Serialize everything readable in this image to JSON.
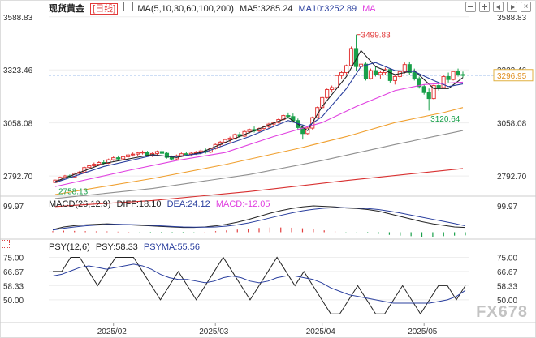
{
  "header": {
    "symbol": "现货黄金",
    "period": "日线",
    "ma_label": "MA(5,10,30,60,100,200)",
    "ma5": "MA5:3285.24",
    "ma10": "MA10:3252.89",
    "ma": "MA"
  },
  "macd_header": {
    "label": "MACD(26,12,9)",
    "diff": "DIFF:18.10",
    "dea": "DEA:24.12",
    "macd": "MACD:-12.05"
  },
  "psy_header": {
    "label": "PSY(12,6)",
    "psy": "PSY:58.33",
    "psyma": "PSYMA:55.56"
  },
  "watermark": "FX678",
  "colors": {
    "up": "#e23b3b",
    "down": "#19a04a",
    "ma5": "#222222",
    "ma10": "#2a3f9e",
    "ma30": "#e040e0",
    "ma60": "#f0a030",
    "ma100": "#909090",
    "ma200": "#d83030",
    "psy": "#222222",
    "psyma": "#2a3f9e"
  },
  "chart_data": [
    {
      "type": "candlestick",
      "title": "现货黄金",
      "price_ticks": [
        "3588.83",
        "3323.46",
        "3058.08",
        "2792.70"
      ],
      "price_tick_values": [
        3588.83,
        3323.46,
        3058.08,
        2792.7
      ],
      "ylim": [
        2700,
        3600
      ],
      "x_labels": [
        "2025/02",
        "2025/03",
        "2025/04",
        "2025/05"
      ],
      "current_price": "3296.95",
      "current_price_value": 3296.95,
      "annotations": {
        "high": "3499.83",
        "low_recent": "3120.64",
        "low_start": "2758.13"
      },
      "candles": [
        [
          2760,
          2775,
          2758,
          2772
        ],
        [
          2772,
          2790,
          2768,
          2786
        ],
        [
          2786,
          2798,
          2780,
          2793
        ],
        [
          2793,
          2800,
          2785,
          2788
        ],
        [
          2788,
          2810,
          2786,
          2806
        ],
        [
          2806,
          2818,
          2800,
          2812
        ],
        [
          2812,
          2840,
          2808,
          2835
        ],
        [
          2835,
          2850,
          2828,
          2844
        ],
        [
          2844,
          2860,
          2838,
          2852
        ],
        [
          2852,
          2866,
          2845,
          2860
        ],
        [
          2860,
          2872,
          2850,
          2856
        ],
        [
          2856,
          2880,
          2852,
          2874
        ],
        [
          2874,
          2890,
          2868,
          2884
        ],
        [
          2884,
          2895,
          2870,
          2878
        ],
        [
          2878,
          2892,
          2874,
          2889
        ],
        [
          2889,
          2905,
          2880,
          2898
        ],
        [
          2898,
          2910,
          2890,
          2902
        ],
        [
          2902,
          2915,
          2894,
          2908
        ],
        [
          2908,
          2920,
          2900,
          2912
        ],
        [
          2912,
          2918,
          2890,
          2896
        ],
        [
          2896,
          2910,
          2888,
          2905
        ],
        [
          2905,
          2920,
          2898,
          2915
        ],
        [
          2915,
          2925,
          2900,
          2906
        ],
        [
          2906,
          2912,
          2880,
          2886
        ],
        [
          2886,
          2895,
          2870,
          2878
        ],
        [
          2878,
          2900,
          2872,
          2894
        ],
        [
          2894,
          2910,
          2888,
          2904
        ],
        [
          2904,
          2915,
          2895,
          2900
        ],
        [
          2900,
          2912,
          2890,
          2906
        ],
        [
          2906,
          2918,
          2898,
          2910
        ],
        [
          2910,
          2925,
          2900,
          2918
        ],
        [
          2918,
          2930,
          2905,
          2912
        ],
        [
          2912,
          2935,
          2908,
          2930
        ],
        [
          2930,
          2955,
          2925,
          2950
        ],
        [
          2950,
          2968,
          2940,
          2962
        ],
        [
          2962,
          2980,
          2955,
          2975
        ],
        [
          2975,
          2990,
          2960,
          2982
        ],
        [
          2982,
          3005,
          2975,
          3000
        ],
        [
          3000,
          3012,
          2985,
          2992
        ],
        [
          2992,
          3020,
          2988,
          3015
        ],
        [
          3015,
          3030,
          3005,
          3025
        ],
        [
          3025,
          3040,
          3010,
          3018
        ],
        [
          3018,
          3035,
          3012,
          3030
        ],
        [
          3030,
          3045,
          3020,
          3040
        ],
        [
          3040,
          3058,
          3030,
          3052
        ],
        [
          3052,
          3065,
          3040,
          3060
        ],
        [
          3060,
          3080,
          3055,
          3075
        ],
        [
          3075,
          3100,
          3070,
          3095
        ],
        [
          3095,
          3110,
          3080,
          3090
        ],
        [
          3090,
          3105,
          3060,
          3070
        ],
        [
          3070,
          3080,
          3020,
          3035
        ],
        [
          3035,
          3050,
          2975,
          3005
        ],
        [
          3005,
          3040,
          2998,
          3032
        ],
        [
          3032,
          3090,
          3025,
          3085
        ],
        [
          3085,
          3140,
          3080,
          3135
        ],
        [
          3135,
          3190,
          3130,
          3185
        ],
        [
          3185,
          3230,
          3180,
          3225
        ],
        [
          3225,
          3245,
          3210,
          3235
        ],
        [
          3235,
          3300,
          3230,
          3295
        ],
        [
          3295,
          3320,
          3280,
          3310
        ],
        [
          3310,
          3350,
          3300,
          3345
        ],
        [
          3345,
          3440,
          3340,
          3430
        ],
        [
          3430,
          3500,
          3320,
          3340
        ],
        [
          3340,
          3370,
          3320,
          3352
        ],
        [
          3352,
          3360,
          3270,
          3280
        ],
        [
          3280,
          3330,
          3275,
          3320
        ],
        [
          3320,
          3340,
          3290,
          3300
        ],
        [
          3300,
          3320,
          3280,
          3310
        ],
        [
          3310,
          3335,
          3300,
          3325
        ],
        [
          3325,
          3330,
          3260,
          3270
        ],
        [
          3270,
          3300,
          3250,
          3290
        ],
        [
          3290,
          3320,
          3280,
          3315
        ],
        [
          3315,
          3360,
          3305,
          3350
        ],
        [
          3350,
          3365,
          3300,
          3310
        ],
        [
          3310,
          3330,
          3270,
          3280
        ],
        [
          3280,
          3290,
          3230,
          3240
        ],
        [
          3240,
          3250,
          3200,
          3210
        ],
        [
          3210,
          3230,
          3120,
          3180
        ],
        [
          3180,
          3250,
          3175,
          3245
        ],
        [
          3245,
          3260,
          3220,
          3235
        ],
        [
          3235,
          3300,
          3230,
          3290
        ],
        [
          3290,
          3310,
          3260,
          3275
        ],
        [
          3275,
          3320,
          3270,
          3315
        ],
        [
          3315,
          3330,
          3290,
          3300
        ],
        [
          3300,
          3315,
          3285,
          3297
        ]
      ],
      "ma": [
        {
          "name": "MA5",
          "color": "#222222",
          "points": [
            [
              0,
              2765
            ],
            [
              10,
              2855
            ],
            [
              20,
              2900
            ],
            [
              25,
              2885
            ],
            [
              30,
              2910
            ],
            [
              40,
              3010
            ],
            [
              48,
              3085
            ],
            [
              52,
              3020
            ],
            [
              55,
              3140
            ],
            [
              60,
              3290
            ],
            [
              63,
              3420
            ],
            [
              66,
              3340
            ],
            [
              70,
              3300
            ],
            [
              74,
              3320
            ],
            [
              78,
              3230
            ],
            [
              81,
              3230
            ],
            [
              84,
              3285
            ]
          ]
        },
        {
          "name": "MA10",
          "color": "#2a3f9e",
          "points": [
            [
              0,
              2760
            ],
            [
              10,
              2840
            ],
            [
              20,
              2895
            ],
            [
              25,
              2890
            ],
            [
              30,
              2905
            ],
            [
              40,
              2990
            ],
            [
              48,
              3070
            ],
            [
              52,
              3040
            ],
            [
              55,
              3090
            ],
            [
              60,
              3230
            ],
            [
              63,
              3340
            ],
            [
              66,
              3360
            ],
            [
              70,
              3320
            ],
            [
              74,
              3315
            ],
            [
              78,
              3270
            ],
            [
              81,
              3240
            ],
            [
              84,
              3253
            ]
          ]
        },
        {
          "name": "MA30",
          "color": "#e040e0",
          "points": [
            [
              0,
              2740
            ],
            [
              15,
              2820
            ],
            [
              25,
              2870
            ],
            [
              35,
              2910
            ],
            [
              45,
              2990
            ],
            [
              55,
              3060
            ],
            [
              62,
              3140
            ],
            [
              70,
              3220
            ],
            [
              76,
              3250
            ],
            [
              84,
              3262
            ]
          ]
        },
        {
          "name": "MA60",
          "color": "#f0a030",
          "points": [
            [
              0,
              2700
            ],
            [
              20,
              2780
            ],
            [
              35,
              2850
            ],
            [
              50,
              2930
            ],
            [
              60,
              2990
            ],
            [
              70,
              3060
            ],
            [
              80,
              3110
            ],
            [
              84,
              3135
            ]
          ]
        },
        {
          "name": "MA100",
          "color": "#909090",
          "points": [
            [
              0,
              2680
            ],
            [
              20,
              2730
            ],
            [
              40,
              2800
            ],
            [
              55,
              2870
            ],
            [
              70,
              2950
            ],
            [
              84,
              3020
            ]
          ]
        },
        {
          "name": "MA200",
          "color": "#d83030",
          "points": [
            [
              0,
              2640
            ],
            [
              20,
              2670
            ],
            [
              40,
              2715
            ],
            [
              60,
              2770
            ],
            [
              84,
              2830
            ]
          ]
        }
      ]
    },
    {
      "type": "bar+line",
      "title": "MACD(26,12,9)",
      "y_tick": "99.97",
      "y_tick_value": 99.97,
      "diff": [
        10,
        20,
        25,
        28,
        30,
        32,
        30,
        28,
        26,
        24,
        22,
        20,
        18,
        18,
        20,
        24,
        30,
        38,
        48,
        60,
        72,
        82,
        90,
        96,
        100,
        98,
        96,
        92,
        90,
        86,
        80,
        70,
        60,
        50,
        40,
        32,
        26,
        20,
        18
      ],
      "dea": [
        8,
        15,
        20,
        24,
        27,
        29,
        30,
        29,
        28,
        26,
        24,
        22,
        20,
        19,
        19,
        20,
        23,
        28,
        35,
        44,
        54,
        64,
        73,
        81,
        87,
        91,
        93,
        93,
        92,
        90,
        86,
        80,
        73,
        65,
        57,
        49,
        41,
        33,
        24
      ],
      "hist": [
        4,
        6,
        5,
        4,
        3,
        3,
        2,
        1,
        -1,
        -2,
        -2,
        -2,
        -2,
        -1,
        1,
        4,
        7,
        10,
        13,
        16,
        18,
        18,
        17,
        15,
        13,
        7,
        3,
        -1,
        -2,
        -4,
        -6,
        -10,
        -13,
        -15,
        -17,
        -17,
        -15,
        -13,
        -12
      ]
    },
    {
      "type": "line",
      "title": "PSY(12,6)",
      "y_ticks": [
        "75.00",
        "66.67",
        "58.33",
        "50.00"
      ],
      "y_tick_values": [
        75.0,
        66.67,
        58.33,
        50.0
      ],
      "psy": [
        66.67,
        66.67,
        75,
        75,
        66.67,
        58.33,
        66.67,
        75,
        75,
        75,
        66.67,
        58.33,
        50,
        58.33,
        66.67,
        58.33,
        50,
        58.33,
        66.67,
        75,
        66.67,
        58.33,
        50,
        58.33,
        66.67,
        75,
        66.67,
        58.33,
        66.67,
        58.33,
        50,
        41.67,
        41.67,
        50,
        58.33,
        50,
        41.67,
        41.67,
        50,
        58.33,
        50,
        41.67,
        50,
        58.33,
        58.33,
        50,
        58.33
      ],
      "psyma": [
        64,
        65,
        67,
        69,
        70,
        69,
        68,
        69,
        70,
        71,
        70,
        68,
        65,
        63,
        62,
        62,
        61,
        60,
        61,
        63,
        64,
        63,
        61,
        60,
        61,
        63,
        64,
        64,
        63,
        62,
        60,
        57,
        55,
        53,
        52,
        51,
        50,
        49,
        48,
        48,
        48,
        48,
        48,
        49,
        50,
        52,
        55.56
      ]
    }
  ]
}
